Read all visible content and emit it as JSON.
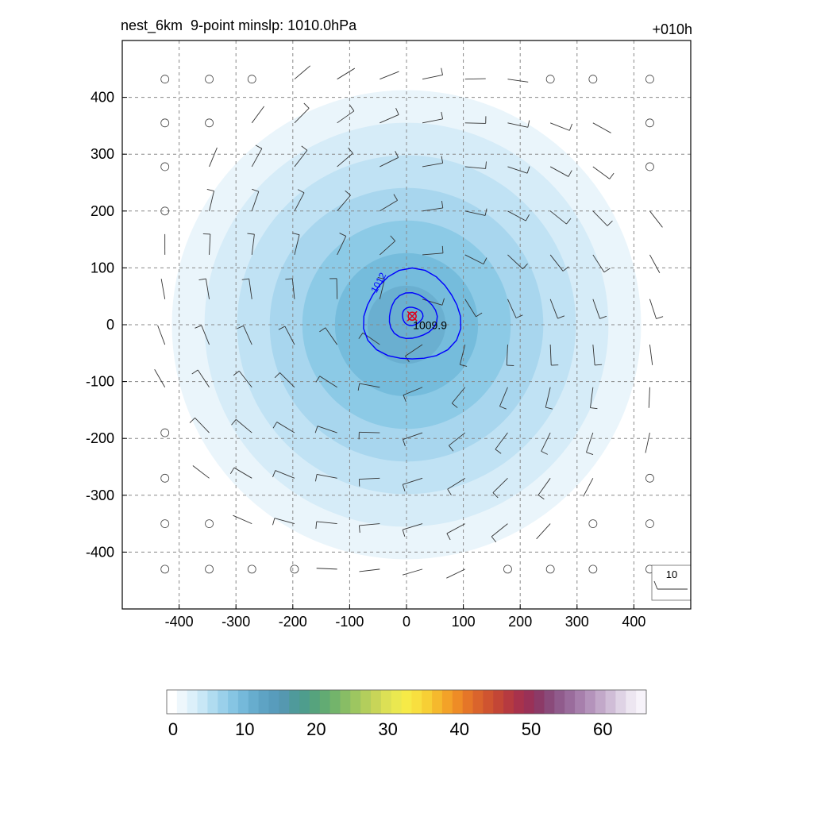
{
  "title_left": "nest_6km  9-point minslp: 1010.0hPa",
  "title_right": "+010h",
  "chart_data": {
    "type": "heatmap",
    "x_ticks": [
      "-400",
      "-300",
      "-200",
      "-100",
      "0",
      "100",
      "200",
      "300",
      "400"
    ],
    "y_ticks": [
      "400",
      "300",
      "200",
      "100",
      "0",
      "-100",
      "-200",
      "-300",
      "-400"
    ],
    "xlim": [
      -500,
      500
    ],
    "ylim": [
      -500,
      500
    ],
    "grid": true,
    "filled_field": {
      "center": [
        0,
        0
      ],
      "max_value": 15,
      "levels": [
        2,
        4,
        6,
        8,
        10,
        12,
        14
      ],
      "colors": [
        "#eaf5fb",
        "#d6ecf8",
        "#c0e2f4",
        "#a8d6ee",
        "#8ccae6",
        "#75bcdc",
        "#6aafd0"
      ]
    },
    "contour_lines": {
      "color": "#0000ff",
      "label": "1012",
      "min_label": "1009.9",
      "center": [
        10,
        15
      ]
    },
    "wind_key_label": "10",
    "colorbar": {
      "tick_labels": [
        "0",
        "10",
        "20",
        "30",
        "40",
        "50",
        "60"
      ],
      "min": 0,
      "max": 66,
      "colors": [
        "#ffffff",
        "#eef7fc",
        "#dcf0fa",
        "#c8e7f6",
        "#b0dcf0",
        "#9ad0ea",
        "#86c5e3",
        "#75b9da",
        "#67adce",
        "#5ea3c4",
        "#589cbc",
        "#5598b0",
        "#4f9a9b",
        "#4e9d8d",
        "#56a37d",
        "#62ab73",
        "#73b46b",
        "#88bd65",
        "#9dc660",
        "#b3ce5c",
        "#c8d558",
        "#dce055",
        "#eae850",
        "#f6ea47",
        "#f8df3f",
        "#f7cf35",
        "#f5b92d",
        "#f3a228",
        "#ee8c26",
        "#e57628",
        "#da642c",
        "#cf5430",
        "#c34636",
        "#b63a40",
        "#a8324c",
        "#9a3157",
        "#8c3a67",
        "#8a4a7a",
        "#905b8c",
        "#9a6c9c",
        "#a77fac",
        "#b493bb",
        "#c2a8c9",
        "#d0bdd7",
        "#dfd3e5",
        "#ede6f1",
        "#f7f3fa"
      ]
    }
  }
}
